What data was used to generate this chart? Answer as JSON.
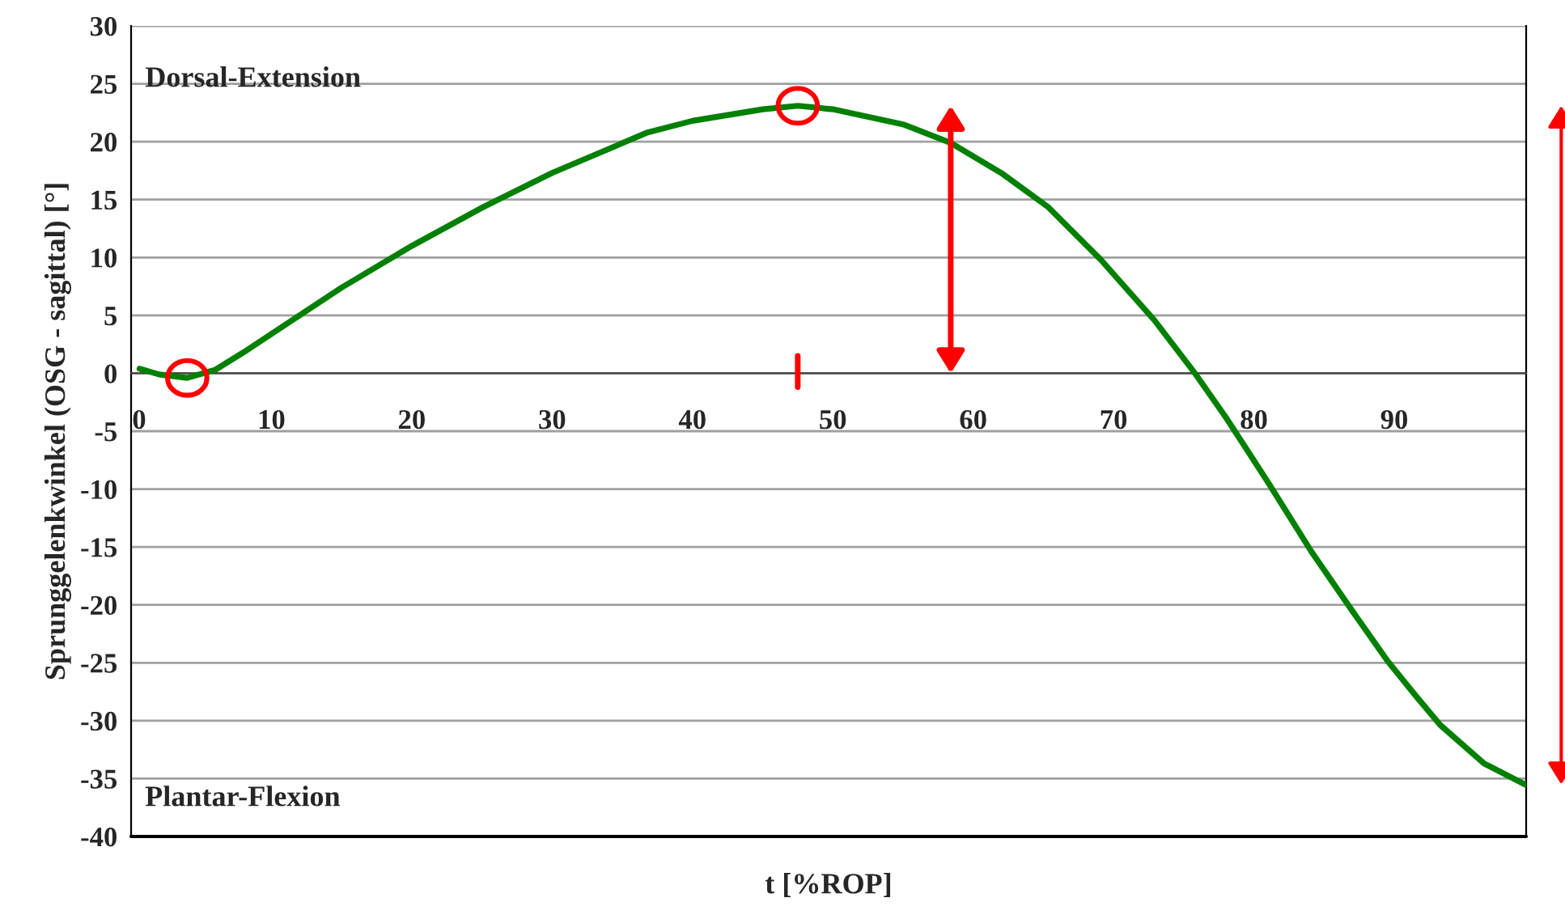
{
  "chart_data": {
    "type": "line",
    "xlabel": "t [%ROP]",
    "ylabel": "Sprunggelenkwinkel (OSG - sagittal) [°]",
    "annotations": [
      "Dorsal-Extension",
      "Plantar-Flexion"
    ],
    "xlim": [
      0,
      99.4
    ],
    "xticks": [
      0,
      10,
      20,
      30,
      40,
      50,
      60,
      70,
      80,
      90
    ],
    "ylim": [
      -40,
      30
    ],
    "yticks": [
      -40,
      -35,
      -30,
      -25,
      -20,
      -15,
      -10,
      -5,
      0,
      5,
      10,
      15,
      20,
      25,
      30
    ],
    "grid": "y",
    "legend": false,
    "marker": "none",
    "line_style": "solid",
    "series": [
      {
        "color": "#008000",
        "x": [
          0.6,
          2,
          4,
          6,
          8,
          10,
          15,
          20,
          25,
          30,
          36.8,
          40,
          45,
          47.5,
          50,
          55,
          58.4,
          62,
          65.3,
          69.1,
          72.9,
          75.8,
          78,
          81,
          84.1,
          87,
          89.5,
          91.5,
          93.3,
          96.4,
          99.3
        ],
        "values": [
          0.4,
          -0.1,
          -0.4,
          0.3,
          1.8,
          3.4,
          7.4,
          11.0,
          14.3,
          17.3,
          20.8,
          21.8,
          22.8,
          23.1,
          22.8,
          21.5,
          19.9,
          17.3,
          14.4,
          9.8,
          4.6,
          0,
          -3.8,
          -9.4,
          -15.4,
          -20.5,
          -24.8,
          -27.8,
          -30.4,
          -33.7,
          -35.5
        ]
      }
    ]
  }
}
